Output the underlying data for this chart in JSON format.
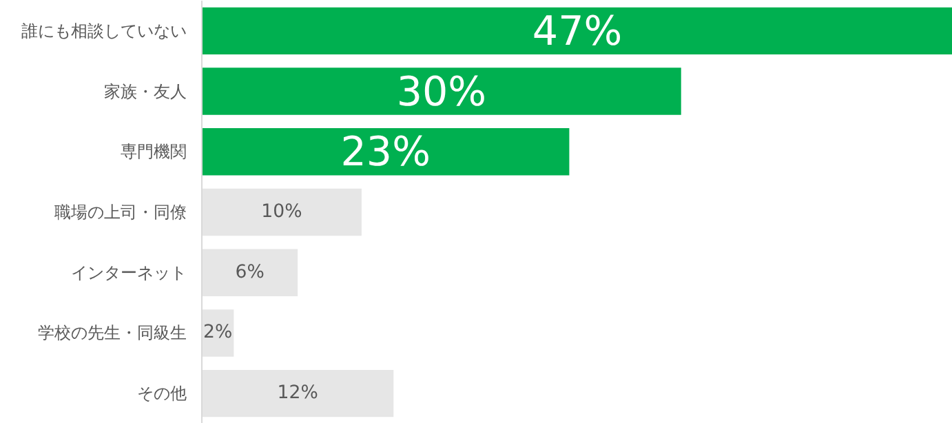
{
  "chart_data": {
    "type": "bar",
    "orientation": "horizontal",
    "categories": [
      "誰にも相談していない",
      "家族・友人",
      "専門機関",
      "職場の上司・同僚",
      "インターネット",
      "学校の先生・同級生",
      "その他"
    ],
    "values": [
      47,
      30,
      23,
      10,
      6,
      2,
      12
    ],
    "colors": [
      "#00b050",
      "#00b050",
      "#00b050",
      "#e6e6e6",
      "#e6e6e6",
      "#e6e6e6",
      "#e6e6e6"
    ],
    "value_labels": [
      "47%",
      "30%",
      "23%",
      "10%",
      "6%",
      "2%",
      "12%"
    ],
    "xlim": [
      0,
      47
    ],
    "grid": false
  }
}
